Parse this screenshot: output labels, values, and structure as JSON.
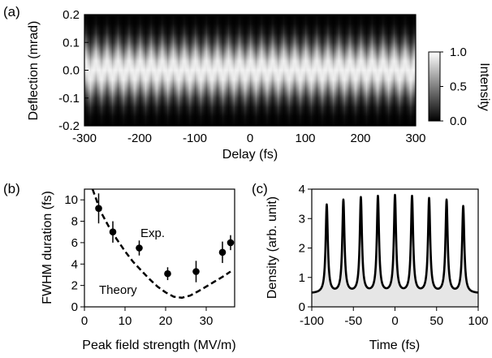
{
  "figure": {
    "panels": [
      {
        "label": "(a)",
        "chart_data": {
          "type": "heatmap",
          "xlabel": "Delay (fs)",
          "ylabel": "Deflection (mrad)",
          "xlim": [
            -300,
            300
          ],
          "ylim": [
            -0.2,
            0.2
          ],
          "xticks": [
            -300,
            -200,
            -100,
            0,
            100,
            200,
            300
          ],
          "yticks": [
            -0.2,
            -0.1,
            0.0,
            0.1,
            0.2
          ],
          "colorbar": {
            "label": "Intensity",
            "range": [
              0.0,
              1.0
            ],
            "ticks": [
              "0.0",
              "0.5",
              "1.0"
            ],
            "colormap": "grayscale"
          },
          "pattern": {
            "period_fs": 20,
            "oscillation_amplitude_mrad": 0.022,
            "beam_halfwidth_mrad": 0.1
          }
        }
      },
      {
        "label": "(b)",
        "chart_data": {
          "type": "scatter",
          "xlabel": "Peak field strength (MV/m)",
          "ylabel": "FWHM duration (fs)",
          "xlim": [
            0,
            37
          ],
          "ylim": [
            0,
            11
          ],
          "xticks": [
            0,
            10,
            20,
            30
          ],
          "yticks": [
            0,
            2,
            4,
            6,
            8,
            10
          ],
          "series": [
            {
              "name": "Exp.",
              "x": [
                3.5,
                7,
                13.5,
                20.5,
                27.5,
                34,
                36
              ],
              "y": [
                9.2,
                7.0,
                5.5,
                3.1,
                3.3,
                5.1,
                6.0
              ],
              "yerr": [
                1.4,
                1.0,
                0.7,
                0.6,
                1.0,
                1.0,
                0.7
              ]
            },
            {
              "name": "Theory",
              "style": "dashed",
              "x": [
                2,
                4,
                6,
                8,
                10,
                12,
                14,
                16,
                18,
                20,
                22,
                24,
                26,
                28,
                30,
                32,
                34,
                36
              ],
              "y": [
                11.5,
                8.9,
                7.5,
                6.3,
                5.2,
                4.2,
                3.4,
                2.6,
                1.9,
                1.35,
                0.95,
                0.85,
                1.05,
                1.45,
                1.9,
                2.35,
                2.8,
                3.3
              ]
            }
          ]
        }
      },
      {
        "label": "(c)",
        "chart_data": {
          "type": "line",
          "xlabel": "Time (fs)",
          "ylabel": "Density (arb. unit)",
          "xlim": [
            -100,
            100
          ],
          "ylim": [
            0,
            4
          ],
          "xticks": [
            -100,
            -50,
            0,
            50,
            100
          ],
          "yticks": [
            0,
            1,
            2,
            3,
            4
          ],
          "baseline": 0.45,
          "peak_width_fs": 1.6,
          "series": [
            {
              "x": [
                -82,
                -62,
                -41,
                -20.5,
                0,
                20.5,
                41,
                62,
                82
              ],
              "y": [
                3.45,
                3.6,
                3.68,
                3.72,
                3.75,
                3.72,
                3.65,
                3.6,
                3.4
              ]
            }
          ],
          "fill_under": true
        }
      }
    ],
    "annotations": {
      "exp_label": "Exp.",
      "theory_label": "Theory"
    }
  }
}
